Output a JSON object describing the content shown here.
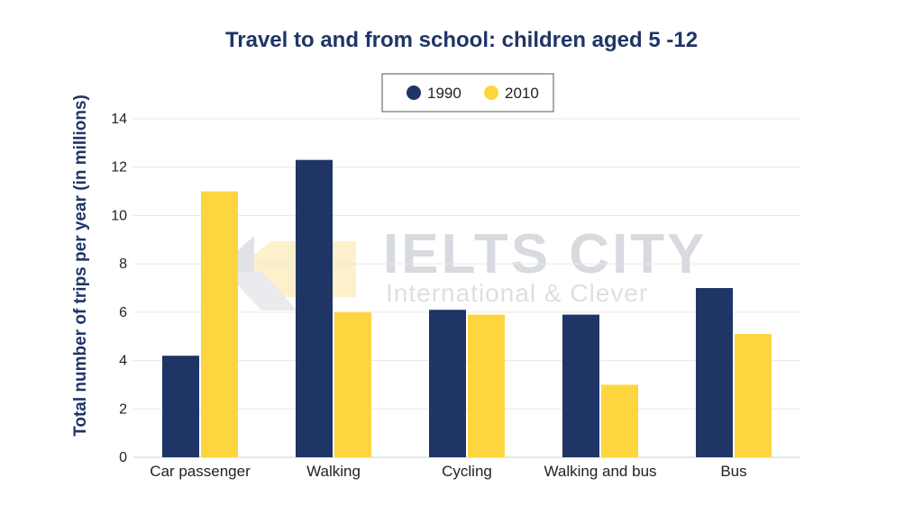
{
  "colors": {
    "series_1990": "#1f3566",
    "series_2010": "#fdd63f",
    "title": "#1f3566",
    "grid": "#e6e6e6",
    "watermark": "#b8bcc6",
    "watermark_accent": "#fbe7a0"
  },
  "watermark": {
    "line1": "IELTS CITY",
    "line2": "International & Clever"
  },
  "chart_data": {
    "type": "bar",
    "title": "Travel to and from school: children aged 5 -12",
    "xlabel": "",
    "ylabel": "Total number of trips per year (in millions)",
    "categories": [
      "Car passenger",
      "Walking",
      "Cycling",
      "Walking and bus",
      "Bus"
    ],
    "series": [
      {
        "name": "1990",
        "values": [
          4.2,
          12.3,
          6.1,
          5.9,
          7.0
        ]
      },
      {
        "name": "2010",
        "values": [
          11.0,
          6.0,
          5.9,
          3.0,
          5.1
        ]
      }
    ],
    "ylim": [
      0,
      14
    ],
    "yticks": [
      "0",
      "2",
      "4",
      "6",
      "8",
      "10",
      "12",
      "14"
    ],
    "grid": true,
    "legend_position": "top-center"
  }
}
